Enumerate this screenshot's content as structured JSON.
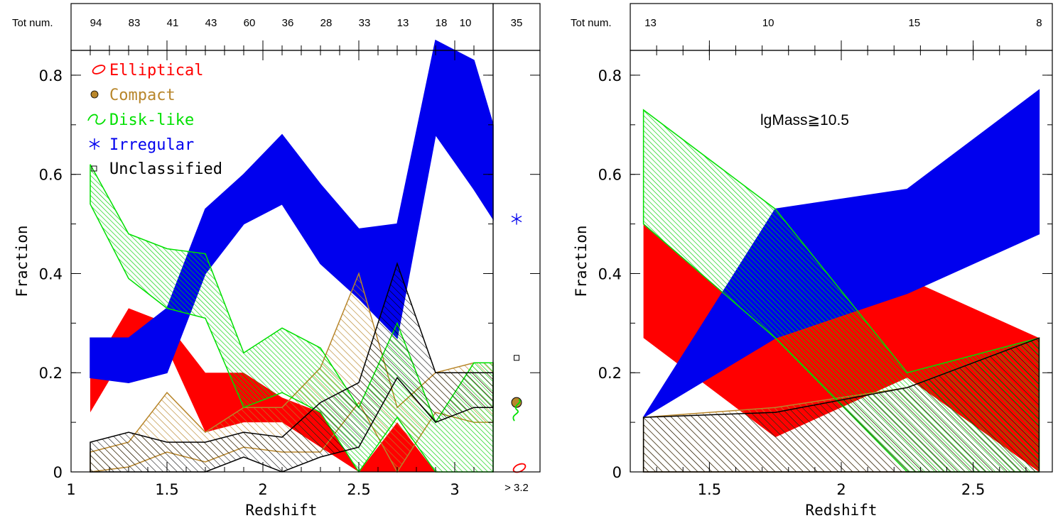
{
  "chart_data": [
    {
      "type": "area",
      "panel": "left",
      "xlabel": "Redshift",
      "ylabel": "Fraction",
      "xlim": [
        1,
        3.2
      ],
      "ylim": [
        0,
        0.85
      ],
      "x_ticks": [
        "1",
        "1.5",
        "2",
        "2.5",
        "3"
      ],
      "y_ticks": [
        "0",
        "0.2",
        "0.4",
        "0.6",
        "0.8"
      ],
      "top_axis_label": "Tot num.",
      "x": [
        1.1,
        1.3,
        1.5,
        1.7,
        1.9,
        2.1,
        2.3,
        2.5,
        2.7,
        2.9,
        3.1,
        3.2
      ],
      "tot_num": [
        "94",
        "83",
        "41",
        "43",
        "60",
        "36",
        "28",
        "33",
        "13",
        "18",
        "10",
        "35"
      ],
      "high_z_bin_label": "> 3.2",
      "legend": [
        "Elliptical",
        "Compact",
        "Disk-like",
        "Irregular",
        "Unclassified"
      ],
      "legend_placement": "top-left",
      "series": [
        {
          "name": "Elliptical",
          "color": "#ff0000",
          "style": "solid",
          "lower": [
            0.12,
            0.25,
            0.25,
            0.08,
            0.1,
            0.1,
            0.05,
            0.0,
            0.0,
            0.0,
            0.0,
            0.0
          ],
          "upper": [
            0.2,
            0.33,
            0.3,
            0.2,
            0.2,
            0.15,
            0.12,
            0.0,
            0.1,
            0.0,
            0.0,
            0.0
          ]
        },
        {
          "name": "Compact",
          "color": "#b8862b",
          "style": "hatch",
          "lower": [
            0.0,
            0.01,
            0.04,
            0.02,
            0.05,
            0.04,
            0.04,
            0.14,
            0.0,
            0.12,
            0.1,
            0.1
          ],
          "upper": [
            0.04,
            0.06,
            0.16,
            0.08,
            0.13,
            0.13,
            0.21,
            0.4,
            0.13,
            0.2,
            0.22,
            0.22
          ]
        },
        {
          "name": "Disk-like",
          "color": "#00e000",
          "style": "hatch",
          "lower": [
            0.54,
            0.39,
            0.33,
            0.31,
            0.13,
            0.16,
            0.12,
            0.0,
            0.11,
            0.0,
            0.0,
            0.0
          ],
          "upper": [
            0.62,
            0.48,
            0.45,
            0.44,
            0.24,
            0.29,
            0.25,
            0.13,
            0.3,
            0.1,
            0.22,
            0.22
          ]
        },
        {
          "name": "Irregular",
          "color": "#0000ee",
          "style": "solid",
          "lower": [
            0.19,
            0.18,
            0.2,
            0.4,
            0.5,
            0.54,
            0.42,
            0.35,
            0.27,
            0.68,
            0.57,
            0.51
          ],
          "upper": [
            0.27,
            0.27,
            0.33,
            0.53,
            0.6,
            0.68,
            0.58,
            0.49,
            0.5,
            0.87,
            0.83,
            0.7
          ]
        },
        {
          "name": "Unclassified",
          "color": "#000000",
          "style": "hatch",
          "lower": [
            0.0,
            0.0,
            0.0,
            0.0,
            0.03,
            0.0,
            0.03,
            0.05,
            0.19,
            0.1,
            0.13,
            0.13
          ],
          "upper": [
            0.06,
            0.08,
            0.06,
            0.06,
            0.08,
            0.07,
            0.14,
            0.18,
            0.42,
            0.2,
            0.2,
            0.2
          ]
        }
      ],
      "high_z_points": {
        "Elliptical": 0.005,
        "Compact": 0.14,
        "Disk-like": 0.12,
        "Irregular": 0.51,
        "Unclassified": 0.23
      }
    },
    {
      "type": "area",
      "panel": "right",
      "xlabel": "Redshift",
      "ylabel": "Fraction",
      "xlim": [
        1.2,
        2.8
      ],
      "ylim": [
        0,
        0.85
      ],
      "x_ticks": [
        "1.5",
        "2",
        "2.5"
      ],
      "y_ticks": [
        "0",
        "0.2",
        "0.4",
        "0.6",
        "0.8"
      ],
      "top_axis_label": "Tot num.",
      "x": [
        1.25,
        1.75,
        2.25,
        2.75
      ],
      "tot_num": [
        "13",
        "10",
        "15",
        "8"
      ],
      "annotation": "lgMass≧10.5",
      "series": [
        {
          "name": "Elliptical",
          "color": "#ff0000",
          "style": "solid",
          "lower": [
            0.27,
            0.07,
            0.19,
            0.0
          ],
          "upper": [
            0.5,
            0.27,
            0.39,
            0.27
          ]
        },
        {
          "name": "Compact",
          "color": "#b8862b",
          "style": "hatch",
          "lower": [
            0.0,
            0.0,
            0.0,
            0.0
          ],
          "upper": [
            0.11,
            0.13,
            0.17,
            0.27
          ]
        },
        {
          "name": "Disk-like",
          "color": "#00e000",
          "style": "hatch",
          "lower": [
            0.5,
            0.27,
            0.0,
            0.0
          ],
          "upper": [
            0.73,
            0.53,
            0.2,
            0.27
          ]
        },
        {
          "name": "Irregular",
          "color": "#0000ee",
          "style": "solid",
          "lower": [
            0.11,
            0.27,
            0.36,
            0.48
          ],
          "upper": [
            0.11,
            0.53,
            0.57,
            0.77
          ]
        },
        {
          "name": "Unclassified",
          "color": "#000000",
          "style": "hatch",
          "lower": [
            0.0,
            0.0,
            0.0,
            0.0
          ],
          "upper": [
            0.11,
            0.12,
            0.17,
            0.27
          ]
        }
      ]
    }
  ],
  "colors": {
    "elliptical": "#ff0000",
    "compact": "#b8862b",
    "disk": "#00e000",
    "irregular": "#0000ee",
    "unclassified": "#000000"
  }
}
